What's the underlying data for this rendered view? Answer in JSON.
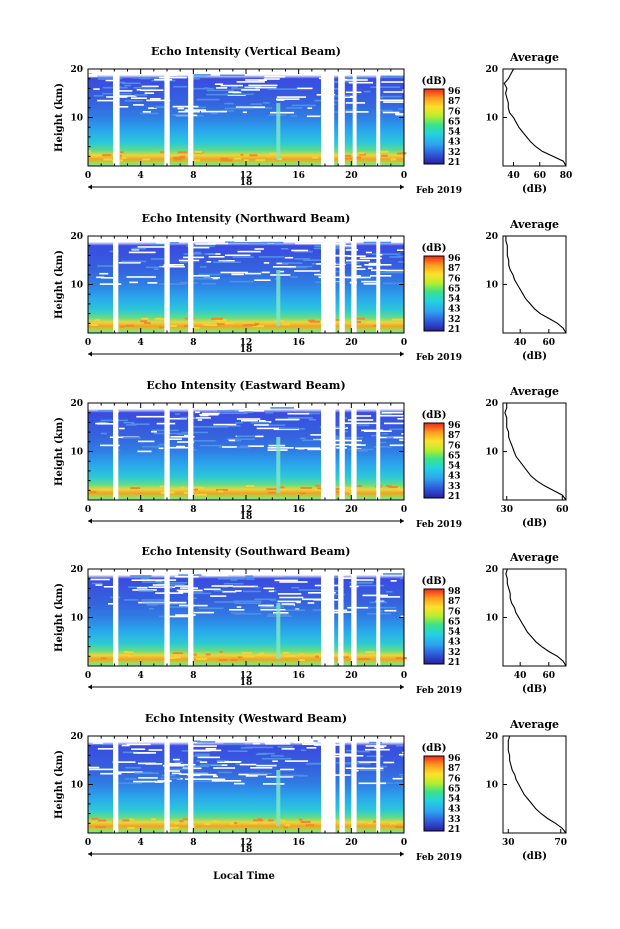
{
  "figure": {
    "x_axis_label": "Local Time",
    "date_label": "Feb 2019"
  },
  "chart_data": [
    {
      "type": "heatmap",
      "title": "Echo Intensity (Vertical Beam)",
      "ylabel": "Height (km)",
      "x_ticks": [
        "0",
        "4",
        "8",
        "12",
        "16",
        "20",
        "0"
      ],
      "y_ticks": [
        "20",
        "10"
      ],
      "xlim": [
        0,
        24
      ],
      "ylim": [
        0,
        20
      ],
      "day_label": "18",
      "colorbar": {
        "label": "(dB)",
        "ticks": [
          "96",
          "87",
          "76",
          "65",
          "54",
          "43",
          "32",
          "21"
        ]
      },
      "data_gaps_hours": [
        [
          1.9,
          2.4
        ],
        [
          5.8,
          6.2
        ],
        [
          7.6,
          8.0
        ],
        [
          17.7,
          18.7
        ],
        [
          19.0,
          19.5
        ],
        [
          20.1,
          20.4
        ],
        [
          21.9,
          22.2
        ]
      ],
      "profile": {
        "title": "Average",
        "xlabel": "(dB)",
        "x_ticks": [
          "40",
          "60",
          "80"
        ],
        "xlim": [
          32,
          80
        ],
        "y_ticks": [
          "20",
          "10"
        ],
        "heights_km": [
          0,
          1,
          2,
          3,
          4,
          5,
          6,
          7,
          8,
          9,
          10,
          11,
          12,
          13,
          14,
          15,
          16,
          17,
          18,
          19,
          20
        ],
        "values_db": [
          80,
          78,
          70,
          62,
          57,
          53,
          50,
          47,
          44,
          42,
          40,
          37,
          36,
          36,
          35,
          34,
          35,
          33,
          36,
          38,
          40
        ]
      }
    },
    {
      "type": "heatmap",
      "title": "Echo Intensity (Northward Beam)",
      "ylabel": "Height (km)",
      "x_ticks": [
        "0",
        "4",
        "8",
        "12",
        "16",
        "20",
        "0"
      ],
      "y_ticks": [
        "20",
        "10"
      ],
      "xlim": [
        0,
        24
      ],
      "ylim": [
        0,
        20
      ],
      "day_label": "18",
      "colorbar": {
        "label": "(dB)",
        "ticks": [
          "96",
          "87",
          "76",
          "65",
          "54",
          "43",
          "32",
          "21"
        ]
      },
      "data_gaps_hours": [
        [
          1.9,
          2.3
        ],
        [
          5.8,
          6.2
        ],
        [
          7.6,
          8.0
        ],
        [
          17.7,
          18.8
        ],
        [
          19.1,
          19.5
        ],
        [
          20.0,
          20.4
        ],
        [
          21.9,
          22.2
        ]
      ],
      "profile": {
        "title": "Average",
        "xlabel": "(dB)",
        "x_ticks": [
          "40",
          "60"
        ],
        "xlim": [
          28,
          72
        ],
        "y_ticks": [
          "20",
          "10"
        ],
        "heights_km": [
          0,
          1,
          2,
          3,
          4,
          5,
          6,
          7,
          8,
          9,
          10,
          11,
          12,
          13,
          14,
          15,
          16,
          17,
          18,
          19,
          20
        ],
        "values_db": [
          72,
          70,
          66,
          60,
          54,
          50,
          47,
          44,
          42,
          40,
          38,
          36,
          35,
          33,
          32,
          32,
          31,
          31,
          31,
          30,
          30
        ]
      }
    },
    {
      "type": "heatmap",
      "title": "Echo Intensity (Eastward Beam)",
      "ylabel": "Height (km)",
      "x_ticks": [
        "0",
        "4",
        "8",
        "12",
        "16",
        "20",
        "0"
      ],
      "y_ticks": [
        "20",
        "10"
      ],
      "xlim": [
        0,
        24
      ],
      "ylim": [
        0,
        20
      ],
      "day_label": "18",
      "colorbar": {
        "label": "(dB)",
        "ticks": [
          "96",
          "87",
          "76",
          "65",
          "54",
          "43",
          "33",
          "21"
        ]
      },
      "data_gaps_hours": [
        [
          1.9,
          2.3
        ],
        [
          5.8,
          6.2
        ],
        [
          7.6,
          8.0
        ],
        [
          17.7,
          18.8
        ],
        [
          19.1,
          19.5
        ],
        [
          20.0,
          20.4
        ],
        [
          21.9,
          22.2
        ]
      ],
      "profile": {
        "title": "Average",
        "xlabel": "(dB)",
        "x_ticks": [
          "30",
          "60"
        ],
        "xlim": [
          28,
          62
        ],
        "y_ticks": [
          "20",
          "10"
        ],
        "heights_km": [
          0,
          1,
          2,
          3,
          4,
          5,
          6,
          7,
          8,
          9,
          10,
          11,
          12,
          13,
          14,
          15,
          16,
          17,
          18,
          19,
          20
        ],
        "values_db": [
          62,
          60,
          55,
          50,
          46,
          43,
          41,
          39,
          37,
          35,
          34,
          33,
          32,
          31,
          31,
          30,
          30,
          30,
          29,
          30,
          30
        ]
      }
    },
    {
      "type": "heatmap",
      "title": "Echo Intensity (Southward Beam)",
      "ylabel": "Height (km)",
      "x_ticks": [
        "0",
        "4",
        "8",
        "12",
        "16",
        "20",
        "0"
      ],
      "y_ticks": [
        "20",
        "10"
      ],
      "xlim": [
        0,
        24
      ],
      "ylim": [
        0,
        20
      ],
      "day_label": "18",
      "colorbar": {
        "label": "(dB)",
        "ticks": [
          "98",
          "87",
          "76",
          "65",
          "54",
          "43",
          "32",
          "21"
        ]
      },
      "data_gaps_hours": [
        [
          1.9,
          2.3
        ],
        [
          5.8,
          6.2
        ],
        [
          7.6,
          8.0
        ],
        [
          17.7,
          18.7
        ],
        [
          19.0,
          19.4
        ],
        [
          20.0,
          20.4
        ],
        [
          21.9,
          22.2
        ]
      ],
      "profile": {
        "title": "Average",
        "xlabel": "(dB)",
        "x_ticks": [
          "40",
          "60"
        ],
        "xlim": [
          28,
          72
        ],
        "y_ticks": [
          "20",
          "10"
        ],
        "heights_km": [
          0,
          1,
          2,
          3,
          4,
          5,
          6,
          7,
          8,
          9,
          10,
          11,
          12,
          13,
          14,
          15,
          16,
          17,
          18,
          19,
          20
        ],
        "values_db": [
          72,
          70,
          66,
          60,
          55,
          51,
          48,
          45,
          43,
          41,
          39,
          37,
          36,
          34,
          33,
          33,
          32,
          31,
          31,
          30,
          31
        ]
      }
    },
    {
      "type": "heatmap",
      "title": "Echo Intensity (Westward Beam)",
      "ylabel": "Height (km)",
      "x_ticks": [
        "0",
        "4",
        "8",
        "12",
        "16",
        "20",
        "0"
      ],
      "y_ticks": [
        "20",
        "10"
      ],
      "xlim": [
        0,
        24
      ],
      "ylim": [
        0,
        20
      ],
      "day_label": "18",
      "colorbar": {
        "label": "(dB)",
        "ticks": [
          "96",
          "87",
          "76",
          "65",
          "54",
          "43",
          "33",
          "21"
        ]
      },
      "data_gaps_hours": [
        [
          1.9,
          2.3
        ],
        [
          5.8,
          6.2
        ],
        [
          7.6,
          8.0
        ],
        [
          17.7,
          18.8
        ],
        [
          19.1,
          19.5
        ],
        [
          20.0,
          20.4
        ],
        [
          21.9,
          22.2
        ]
      ],
      "profile": {
        "title": "Average",
        "xlabel": "(dB)",
        "x_ticks": [
          "30",
          "70"
        ],
        "xlim": [
          26,
          74
        ],
        "y_ticks": [
          "20",
          "10"
        ],
        "heights_km": [
          0,
          1,
          2,
          3,
          4,
          5,
          6,
          7,
          8,
          9,
          10,
          11,
          12,
          13,
          14,
          15,
          16,
          17,
          18,
          19,
          20
        ],
        "values_db": [
          74,
          71,
          66,
          60,
          55,
          51,
          48,
          45,
          42,
          40,
          38,
          36,
          35,
          33,
          32,
          31,
          31,
          30,
          30,
          30,
          31
        ]
      }
    }
  ]
}
